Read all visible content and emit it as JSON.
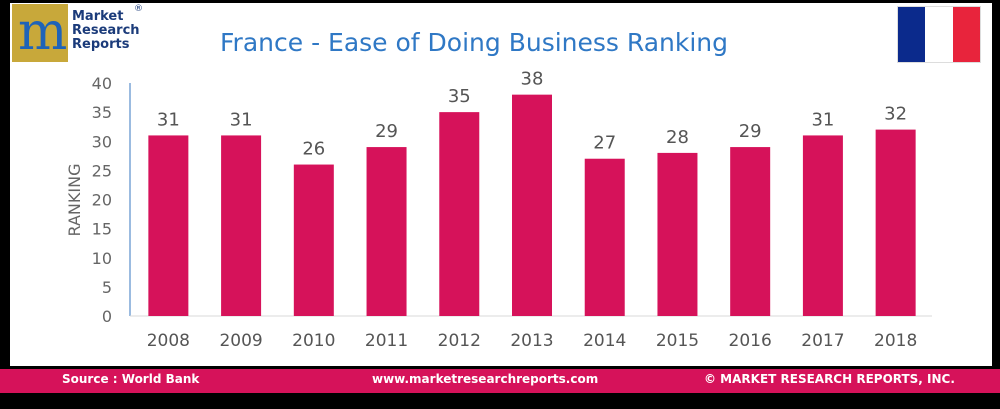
{
  "logo": {
    "mark": "m",
    "line1": "Market",
    "line2": "Research",
    "line3": "Reports",
    "reg": "®"
  },
  "flag": {
    "colors": [
      "#0b2a8c",
      "#ffffff",
      "#e8243c"
    ]
  },
  "footer": {
    "source": "Source : World Bank",
    "url": "www.marketresearchreports.com",
    "copyright": "© MARKET RESEARCH REPORTS, INC."
  },
  "chart_data": {
    "type": "bar",
    "title": "France - Ease of Doing Business Ranking",
    "ylabel": "RANKING",
    "xlabel": "",
    "categories": [
      "2008",
      "2009",
      "2010",
      "2011",
      "2012",
      "2013",
      "2014",
      "2015",
      "2016",
      "2017",
      "2018"
    ],
    "values": [
      31,
      31,
      26,
      29,
      35,
      38,
      27,
      28,
      29,
      31,
      32
    ],
    "ylim": [
      0,
      40
    ],
    "yticks": [
      0,
      5,
      10,
      15,
      20,
      25,
      30,
      35,
      40
    ],
    "bar_color": "#d6125a",
    "grid": false,
    "data_labels": true
  }
}
